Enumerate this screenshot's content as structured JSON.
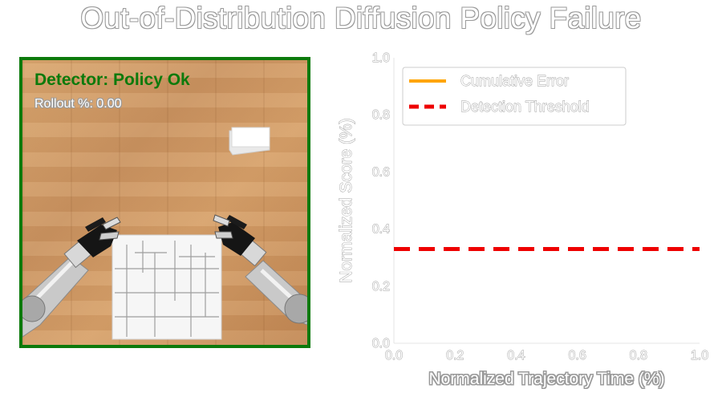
{
  "title": "Out-of-Distribution Diffusion Policy Failure",
  "left_panel": {
    "detector_status": "Detector: Policy Ok",
    "rollout_label": "Rollout %: 0.00",
    "status_color": "#0c7a0c"
  },
  "chart_data": {
    "type": "line",
    "xlabel": "Normalized Trajectory Time (%)",
    "ylabel": "Normalized Score (%)",
    "xlim": [
      0.0,
      1.0
    ],
    "ylim": [
      0.0,
      1.0
    ],
    "xticks": [
      "0.0",
      "0.2",
      "0.4",
      "0.6",
      "0.8",
      "1.0"
    ],
    "yticks": [
      "0.0",
      "0.2",
      "0.4",
      "0.6",
      "0.8",
      "1.0"
    ],
    "grid": false,
    "legend_position": "top-left",
    "series": [
      {
        "name": "Cumulative Error",
        "color": "#ffa500",
        "style": "solid",
        "x": [],
        "y": []
      },
      {
        "name": "Detection Threshold",
        "color": "#ee0000",
        "style": "dashed",
        "x": [
          0.0,
          1.0
        ],
        "y": [
          0.33,
          0.33
        ]
      }
    ]
  }
}
